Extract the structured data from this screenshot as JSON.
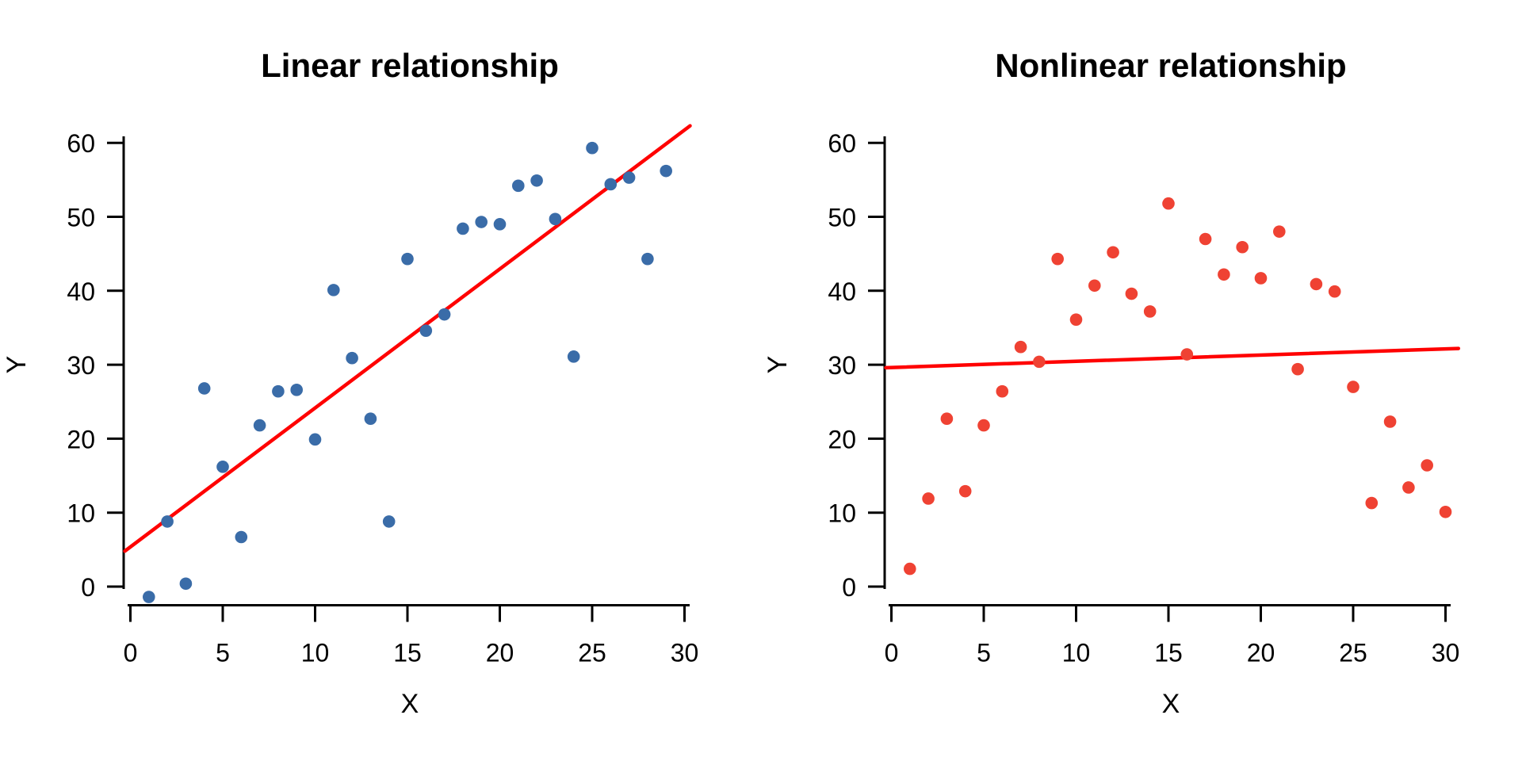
{
  "figure": {
    "background": "#ffffff",
    "text_color": "#000000"
  },
  "chart_data": [
    {
      "type": "scatter",
      "title": "Linear relationship",
      "xlabel": "X",
      "ylabel": "Y",
      "x_ticks": [
        0,
        5,
        10,
        15,
        20,
        25,
        30
      ],
      "y_ticks": [
        0,
        10,
        20,
        30,
        40,
        50,
        60
      ],
      "xlim": [
        -0.5,
        31
      ],
      "ylim": [
        -3,
        63
      ],
      "grid": "off",
      "legend": "none",
      "point_color": "#3A6CA8",
      "points": {
        "x": [
          1,
          2,
          3,
          4,
          5,
          6,
          7,
          8,
          9,
          10,
          11,
          12,
          13,
          14,
          15,
          16,
          17,
          18,
          19,
          20,
          21,
          22,
          23,
          24,
          25,
          26,
          27,
          28,
          29
        ],
        "y": [
          -1.4,
          8.8,
          0.4,
          26.8,
          16.2,
          6.7,
          21.8,
          26.4,
          26.6,
          19.9,
          40.1,
          30.9,
          22.7,
          8.8,
          44.3,
          34.6,
          36.8,
          48.4,
          49.3,
          49.0,
          54.2,
          54.9,
          49.7,
          31.1,
          59.3,
          54.4,
          55.3,
          44.3,
          56.2
        ]
      },
      "trend_line": {
        "color": "#FF0000",
        "x_start": -0.3,
        "y_start": 4.8,
        "x_end": 30.3,
        "y_end": 62.3
      }
    },
    {
      "type": "scatter",
      "title": "Nonlinear relationship",
      "xlabel": "X",
      "ylabel": "Y",
      "x_ticks": [
        0,
        5,
        10,
        15,
        20,
        25,
        30
      ],
      "y_ticks": [
        0,
        10,
        20,
        30,
        40,
        50,
        60
      ],
      "xlim": [
        -0.5,
        31
      ],
      "ylim": [
        -3,
        63
      ],
      "grid": "off",
      "legend": "none",
      "point_color": "#EF4233",
      "points": {
        "x": [
          1,
          2,
          3,
          4,
          5,
          6,
          7,
          8,
          9,
          10,
          11,
          12,
          13,
          14,
          15,
          16,
          17,
          18,
          19,
          20,
          21,
          22,
          23,
          24,
          25,
          26,
          27,
          28,
          29,
          30
        ],
        "y": [
          2.4,
          11.9,
          22.7,
          12.9,
          21.8,
          26.4,
          32.4,
          30.4,
          44.3,
          36.1,
          40.7,
          45.2,
          39.6,
          37.2,
          51.8,
          31.4,
          47.0,
          42.2,
          45.9,
          41.7,
          48.0,
          29.4,
          40.9,
          39.9,
          27.0,
          11.3,
          22.3,
          13.4,
          16.4,
          10.1
        ]
      },
      "trend_line": {
        "color": "#FF0000",
        "x_start": -0.3,
        "y_start": 29.6,
        "x_end": 30.7,
        "y_end": 32.2
      }
    }
  ]
}
